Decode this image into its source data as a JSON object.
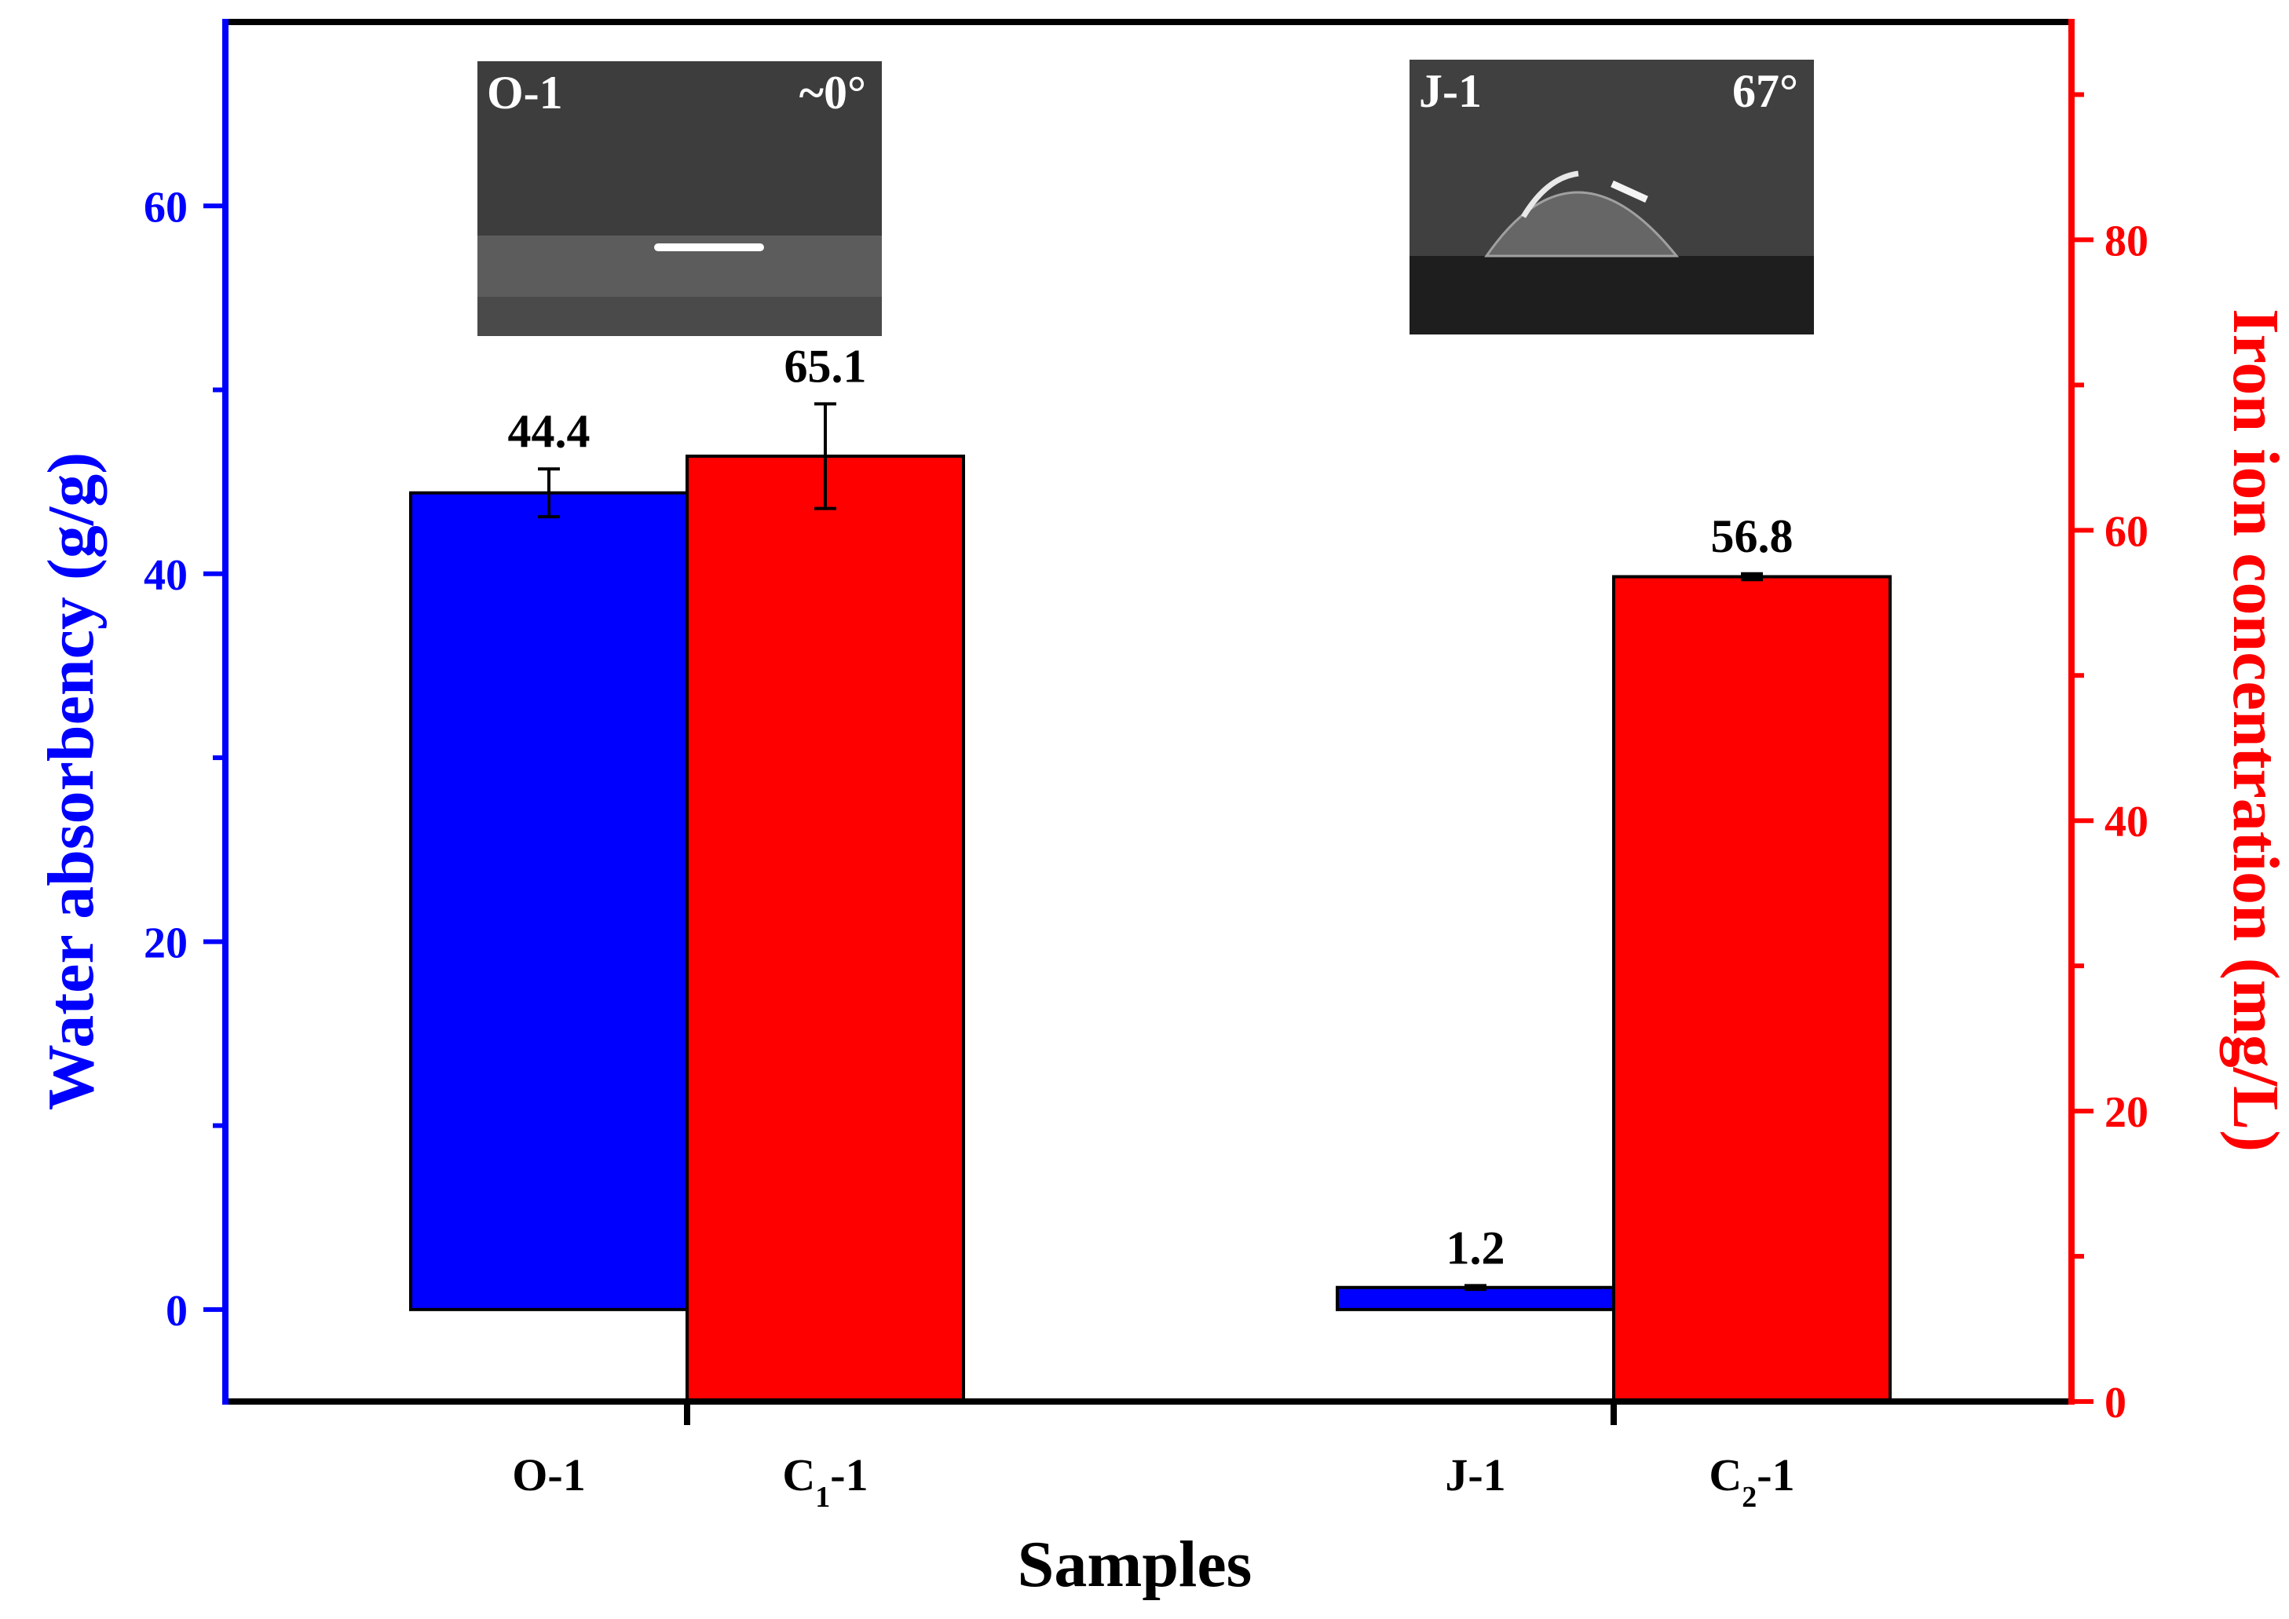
{
  "chart_data": {
    "type": "bar",
    "xlabel": "Samples",
    "ylabel_left": "Water absorbency (g/g)",
    "ylabel_right": "Iron ion concentration (mg/L)",
    "ylim_left": [
      -5,
      70
    ],
    "ylim_right": [
      0,
      95
    ],
    "yticks_left": [
      0,
      20,
      40,
      60
    ],
    "yticks_right": [
      0,
      20,
      40,
      60,
      80
    ],
    "grid": false,
    "groups": [
      {
        "bars": [
          {
            "category": "O-1",
            "label_main": "O-1",
            "label_sub": "",
            "label_suffix": "",
            "axis": "left",
            "value": 44.4,
            "error": 1.3,
            "color": "#0000ff",
            "value_label": "44.4"
          },
          {
            "category": "C1-1",
            "label_main": "C",
            "label_sub": "1",
            "label_suffix": "-1",
            "axis": "right",
            "value": 65.1,
            "error": 3.6,
            "color": "#ff0000",
            "value_label": "65.1"
          }
        ],
        "inset": {
          "sample": "O-1",
          "angle": "~0°",
          "type": "flat"
        }
      },
      {
        "bars": [
          {
            "category": "J-1",
            "label_main": "J-1",
            "label_sub": "",
            "label_suffix": "",
            "axis": "left",
            "value": 1.2,
            "error": 0.1,
            "color": "#0000ff",
            "value_label": "1.2"
          },
          {
            "category": "C2-1",
            "label_main": "C",
            "label_sub": "2",
            "label_suffix": "-1",
            "axis": "right",
            "value": 56.8,
            "error": 0.2,
            "color": "#ff0000",
            "value_label": "56.8"
          }
        ],
        "inset": {
          "sample": "J-1",
          "angle": "67°",
          "type": "droplet"
        }
      }
    ],
    "colors": {
      "left_axis": "#0000ff",
      "right_axis": "#ff0000",
      "frame": "#000000"
    }
  }
}
